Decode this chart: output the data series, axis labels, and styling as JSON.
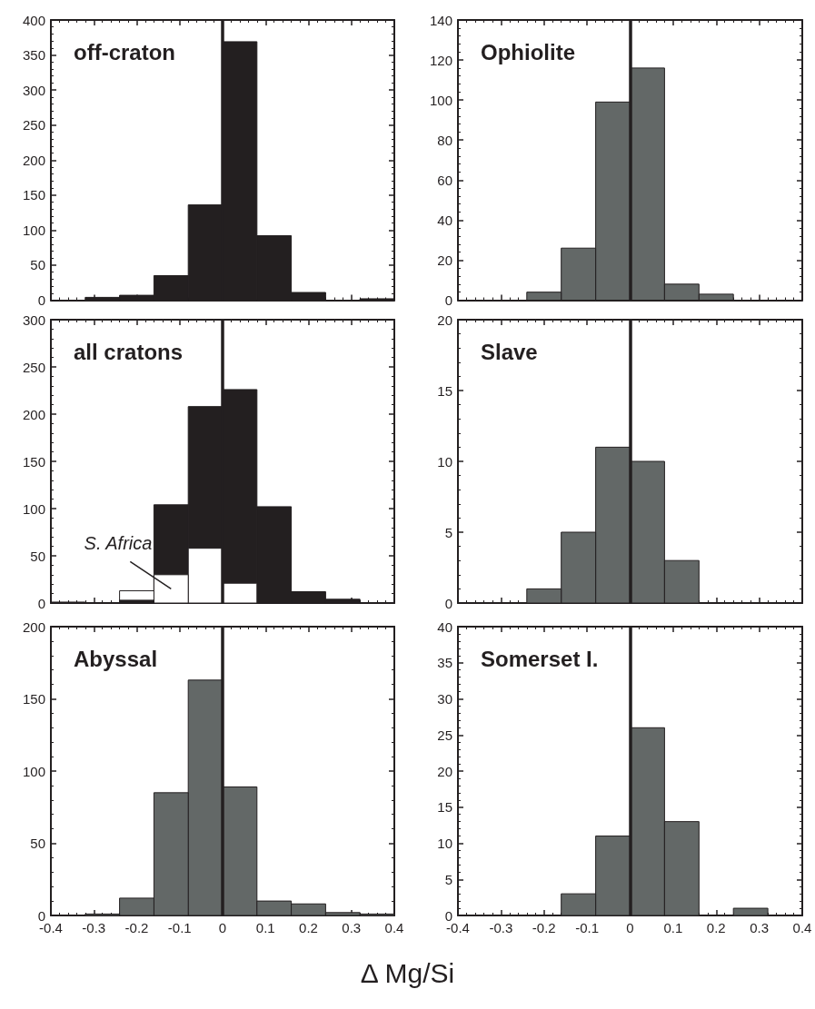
{
  "chart_data": [
    {
      "type": "histogram",
      "title": "off-craton",
      "bins": [
        -0.4,
        -0.32,
        -0.24,
        -0.16,
        -0.08,
        0,
        0.08,
        0.16,
        0.24,
        0.32,
        0.4
      ],
      "series": [
        {
          "color": "#231f20",
          "values": [
            null,
            4,
            7,
            35,
            136,
            369,
            92,
            11,
            0,
            2
          ]
        }
      ],
      "xlim": [
        -0.4,
        0.4
      ],
      "xticks": [
        -0.4,
        -0.3,
        -0.2,
        -0.1,
        0,
        0.1,
        0.2,
        0.3,
        0.4
      ],
      "ylim": [
        0,
        400
      ],
      "yticks": [
        0,
        50,
        100,
        150,
        200,
        250,
        300,
        350,
        400
      ],
      "ref_lines": [
        {
          "axis": "x",
          "value": 0,
          "color": "#231f20"
        }
      ],
      "tick_labels": "y",
      "grid": false,
      "legend": false
    },
    {
      "type": "histogram",
      "title": "Ophiolite",
      "bins": [
        -0.4,
        -0.32,
        -0.24,
        -0.16,
        -0.08,
        0,
        0.08,
        0.16,
        0.24,
        0.32,
        0.4
      ],
      "series": [
        {
          "color": "#636867",
          "values": [
            0,
            0,
            4,
            26,
            99,
            116,
            8,
            3,
            0,
            0
          ]
        }
      ],
      "xlim": [
        -0.4,
        0.4
      ],
      "xticks": [
        -0.4,
        -0.3,
        -0.2,
        -0.1,
        0,
        0.1,
        0.2,
        0.3,
        0.4
      ],
      "ylim": [
        0,
        140
      ],
      "yticks": [
        0,
        20,
        40,
        60,
        80,
        100,
        120,
        140
      ],
      "ref_lines": [
        {
          "axis": "x",
          "value": 0,
          "color": "#231f20"
        }
      ],
      "tick_labels": "y",
      "grid": false,
      "legend": false
    },
    {
      "type": "histogram",
      "title": "all cratons",
      "bins": [
        -0.4,
        -0.32,
        -0.24,
        -0.16,
        -0.08,
        0,
        0.08,
        0.16,
        0.24,
        0.32,
        0.4
      ],
      "series": [
        {
          "color": "#231f20",
          "values": [
            1,
            0,
            3,
            104,
            208,
            226,
            102,
            12,
            4,
            0
          ]
        },
        {
          "name": "S. Africa",
          "color": "#ffffff",
          "values": [
            0,
            0,
            13,
            30,
            58,
            21,
            0,
            0,
            0,
            0
          ]
        }
      ],
      "xlim": [
        -0.4,
        0.4
      ],
      "xticks": [
        -0.4,
        -0.3,
        -0.2,
        -0.1,
        0,
        0.1,
        0.2,
        0.3,
        0.4
      ],
      "ylim": [
        0,
        300
      ],
      "yticks": [
        0,
        50,
        100,
        150,
        200,
        250,
        300
      ],
      "ref_lines": [
        {
          "axis": "x",
          "value": 0,
          "color": "#231f20"
        }
      ],
      "tick_labels": "y",
      "grid": false,
      "legend": false
    },
    {
      "type": "histogram",
      "title": "Slave",
      "bins": [
        -0.4,
        -0.32,
        -0.24,
        -0.16,
        -0.08,
        0,
        0.08,
        0.16,
        0.24,
        0.32,
        0.4
      ],
      "series": [
        {
          "color": "#636867",
          "values": [
            0,
            0,
            1,
            5,
            11,
            10,
            3,
            0,
            0,
            0
          ]
        }
      ],
      "xlim": [
        -0.4,
        0.4
      ],
      "xticks": [
        -0.4,
        -0.3,
        -0.2,
        -0.1,
        0,
        0.1,
        0.2,
        0.3,
        0.4
      ],
      "ylim": [
        0,
        20
      ],
      "yticks": [
        0,
        5,
        10,
        15,
        20
      ],
      "ref_lines": [
        {
          "axis": "x",
          "value": 0,
          "color": "#231f20"
        }
      ],
      "tick_labels": "y",
      "grid": false,
      "legend": false
    },
    {
      "type": "histogram",
      "title": "Abyssal",
      "xlabel": "Δ Mg/Si",
      "bins": [
        -0.4,
        -0.32,
        -0.24,
        -0.16,
        -0.08,
        0,
        0.08,
        0.16,
        0.24,
        0.32,
        0.4
      ],
      "series": [
        {
          "color": "#636867",
          "values": [
            0,
            1,
            12,
            85,
            163,
            89,
            10,
            8,
            2,
            1
          ]
        }
      ],
      "xlim": [
        -0.4,
        0.4
      ],
      "xticks": [
        -0.4,
        -0.3,
        -0.2,
        -0.1,
        0,
        0.1,
        0.2,
        0.3,
        0.4
      ],
      "ylim": [
        0,
        200
      ],
      "yticks": [
        0,
        50,
        100,
        150,
        200
      ],
      "ref_lines": [
        {
          "axis": "x",
          "value": 0,
          "color": "#231f20"
        }
      ],
      "grid": false,
      "legend": false
    },
    {
      "type": "histogram",
      "title": "Somerset I.",
      "bins": [
        -0.4,
        -0.32,
        -0.24,
        -0.16,
        -0.08,
        0,
        0.08,
        0.16,
        0.24,
        0.32,
        0.4
      ],
      "series": [
        {
          "color": "#636867",
          "values": [
            0,
            0,
            0,
            3,
            11,
            26,
            13,
            0,
            1,
            0
          ]
        }
      ],
      "xlim": [
        -0.4,
        0.4
      ],
      "xticks": [
        -0.4,
        -0.3,
        -0.2,
        -0.1,
        0,
        0.1,
        0.2,
        0.3,
        0.4
      ],
      "ylim": [
        0,
        40
      ],
      "yticks": [
        0,
        5,
        10,
        15,
        20,
        25,
        30,
        35,
        40
      ],
      "ref_lines": [
        {
          "axis": "x",
          "value": 0,
          "color": "#231f20"
        }
      ],
      "grid": false,
      "legend": false
    }
  ]
}
